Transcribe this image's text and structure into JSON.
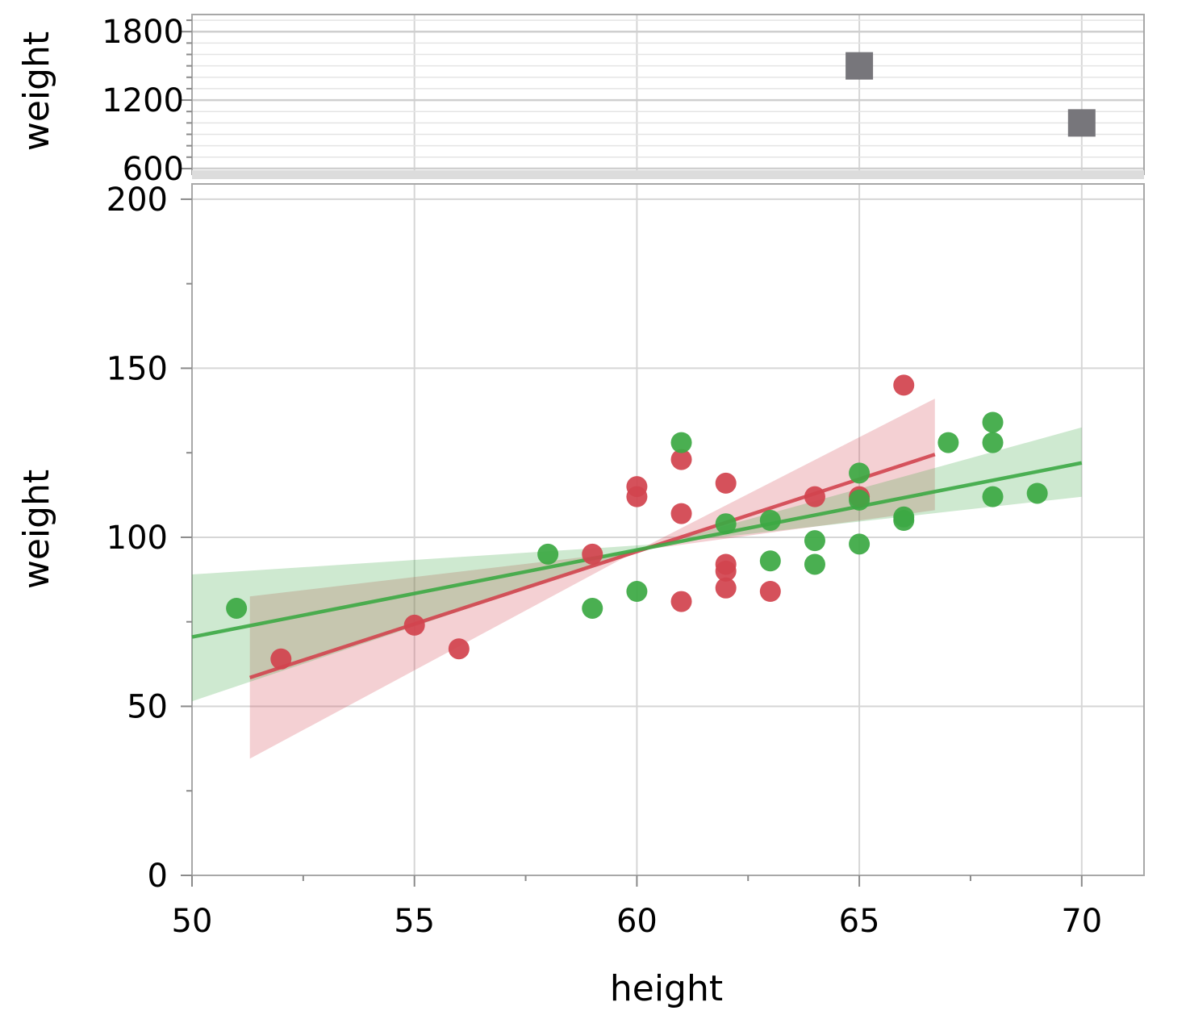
{
  "chart_data": [
    {
      "type": "scatter",
      "panel": "upper",
      "ylabel": "weight",
      "xlim": [
        50,
        71.4
      ],
      "ylim": [
        550,
        1950
      ],
      "yticks": [
        600,
        1200,
        1800
      ],
      "ytick_labels": [
        "600",
        "1200",
        "1800"
      ],
      "grid": true,
      "series": [
        {
          "color": "#77767b",
          "marker": "square",
          "points": [
            [
              65,
              1500
            ],
            [
              70,
              1000
            ]
          ]
        }
      ]
    },
    {
      "type": "scatter",
      "panel": "lower",
      "xlabel": "height",
      "ylabel": "weight",
      "xlim": [
        50,
        71.4
      ],
      "ylim": [
        0,
        210
      ],
      "xticks": [
        50,
        55,
        60,
        65,
        70
      ],
      "xtick_labels": [
        "50",
        "55",
        "60",
        "65",
        "70"
      ],
      "yticks": [
        0,
        50,
        100,
        150,
        200
      ],
      "ytick_labels": [
        "0",
        "50",
        "100",
        "150",
        "200"
      ],
      "grid": true,
      "series": [
        {
          "color": "#d2444f",
          "points": [
            [
              52,
              64
            ],
            [
              55,
              74
            ],
            [
              56,
              67
            ],
            [
              59,
              95
            ],
            [
              60,
              115
            ],
            [
              60,
              112
            ],
            [
              61,
              123
            ],
            [
              61,
              107
            ],
            [
              61,
              81
            ],
            [
              62,
              116
            ],
            [
              62,
              92
            ],
            [
              62,
              90
            ],
            [
              62,
              85
            ],
            [
              63,
              84
            ],
            [
              64,
              112
            ],
            [
              65,
              112
            ],
            [
              66,
              145
            ]
          ],
          "fit": {
            "x": [
              51.3,
              66.7
            ],
            "y": [
              58.5,
              124.5
            ]
          },
          "band": {
            "x": [
              51.3,
              66.7
            ],
            "lower": [
              34.5,
              108
            ],
            "upper": [
              82.5,
              141
            ],
            "center": [
              60,
              96
            ]
          }
        },
        {
          "color": "#3ca944",
          "points": [
            [
              51,
              79
            ],
            [
              58,
              95
            ],
            [
              59,
              79
            ],
            [
              60,
              84
            ],
            [
              61,
              128
            ],
            [
              62,
              104
            ],
            [
              63,
              105
            ],
            [
              63,
              93
            ],
            [
              64,
              99
            ],
            [
              64,
              92
            ],
            [
              65,
              119
            ],
            [
              65,
              111
            ],
            [
              65,
              98
            ],
            [
              66,
              106
            ],
            [
              66,
              105
            ],
            [
              67,
              128
            ],
            [
              68,
              134
            ],
            [
              68,
              128
            ],
            [
              68,
              112
            ],
            [
              69,
              113
            ]
          ],
          "fit": {
            "x": [
              50,
              70
            ],
            "y": [
              70.5,
              122
            ]
          },
          "band": {
            "x": [
              50,
              70
            ],
            "lower": [
              51.5,
              112
            ],
            "upper": [
              89,
              132.5
            ],
            "center": [
              60.5,
              98
            ]
          }
        }
      ]
    }
  ]
}
